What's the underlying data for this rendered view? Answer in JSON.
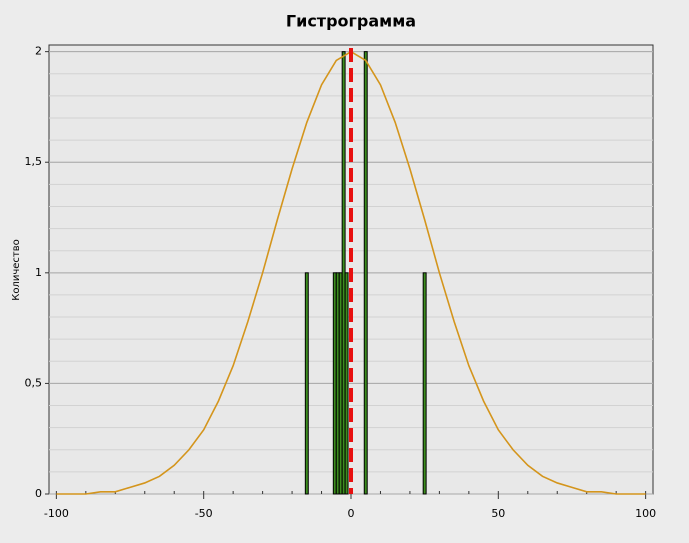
{
  "chart_data": {
    "type": "histogram",
    "title": "Гистрограмма",
    "y_label": "Количество",
    "x": [
      -15,
      -5.5,
      -4.5,
      -3.5,
      -2.5,
      -1.5,
      5,
      25
    ],
    "values": [
      1,
      1,
      1,
      1,
      2,
      1,
      2,
      1
    ],
    "color": "#3c8c1e",
    "curve": {
      "color": "#d4951c",
      "x": [
        -100,
        -95,
        -90,
        -85,
        -80,
        -75,
        -70,
        -65,
        -60,
        -55,
        -50,
        -45,
        -40,
        -35,
        -30,
        -25,
        -20,
        -15,
        -10,
        -5,
        0,
        5,
        10,
        15,
        20,
        25,
        30,
        35,
        40,
        45,
        50,
        55,
        60,
        65,
        70,
        75,
        80,
        85,
        90,
        95,
        100
      ],
      "values": [
        0,
        0,
        0,
        0.01,
        0.01,
        0.03,
        0.05,
        0.08,
        0.13,
        0.2,
        0.29,
        0.42,
        0.58,
        0.78,
        1,
        1.24,
        1.47,
        1.68,
        1.85,
        1.96,
        2,
        1.96,
        1.85,
        1.68,
        1.47,
        1.24,
        1,
        0.78,
        0.58,
        0.42,
        0.29,
        0.2,
        0.13,
        0.08,
        0.05,
        0.03,
        0.01,
        0.01,
        0,
        0,
        0
      ]
    },
    "vline": {
      "value": 0,
      "color": "#e81010"
    },
    "xlim": [
      -102.5,
      102.5
    ],
    "xticks": [
      -100,
      -50,
      0,
      50,
      100
    ],
    "ylim": [
      0,
      2.03
    ],
    "yticks": [
      0,
      {
        "value": 0.5,
        "label": "0,5"
      },
      1,
      {
        "value": 1.5,
        "label": "1,5"
      },
      2
    ],
    "grid": true
  }
}
